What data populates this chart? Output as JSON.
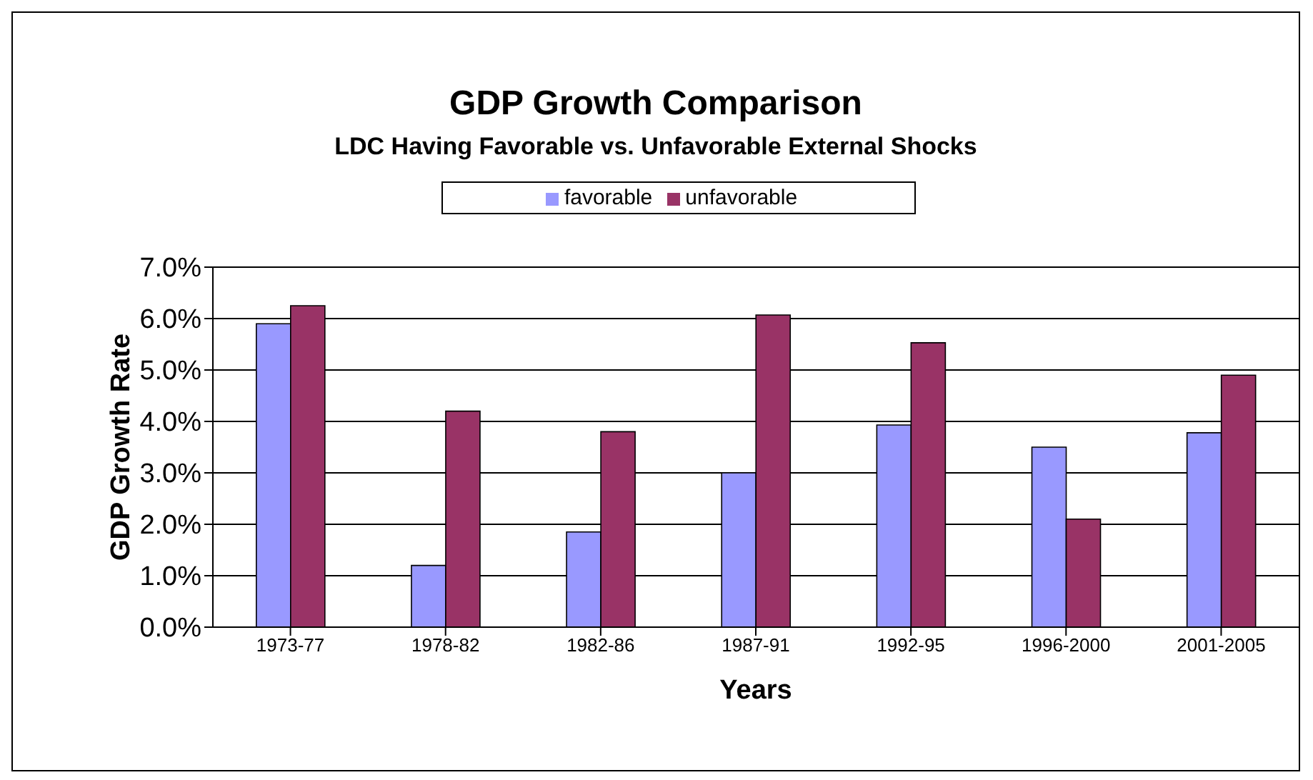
{
  "chart_data": {
    "type": "bar",
    "title": "GDP Growth Comparison",
    "subtitle": "LDC Having Favorable vs. Unfavorable External Shocks",
    "xlabel": "Years",
    "ylabel": "GDP Growth Rate",
    "categories": [
      "1973-77",
      "1978-82",
      "1982-86",
      "1987-91",
      "1992-95",
      "1996-2000",
      "2001-2005"
    ],
    "series": [
      {
        "name": "favorable",
        "color": "#9999ff",
        "values": [
          5.9,
          1.2,
          1.85,
          3.0,
          3.93,
          3.5,
          3.78
        ]
      },
      {
        "name": "unfavorable",
        "color": "#993366",
        "values": [
          6.25,
          4.2,
          3.8,
          6.07,
          5.53,
          2.1,
          4.9
        ]
      }
    ],
    "ylim": [
      0,
      7
    ],
    "yticks": [
      {
        "value": 0,
        "label": "0.0%"
      },
      {
        "value": 1,
        "label": "1.0%"
      },
      {
        "value": 2,
        "label": "2.0%"
      },
      {
        "value": 3,
        "label": "3.0%"
      },
      {
        "value": 4,
        "label": "4.0%"
      },
      {
        "value": 5,
        "label": "5.0%"
      },
      {
        "value": 6,
        "label": "6.0%"
      },
      {
        "value": 7,
        "label": "7.0%"
      }
    ],
    "grid": "y",
    "legend": "top"
  }
}
